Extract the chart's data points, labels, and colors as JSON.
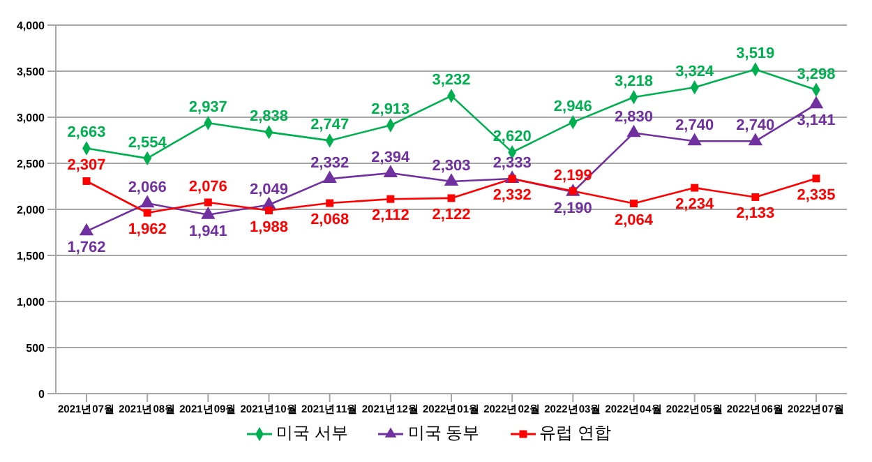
{
  "chart_data": {
    "type": "line",
    "categories": [
      "2021년07월",
      "2021년08월",
      "2021년09월",
      "2021년10월",
      "2021년11월",
      "2021년12월",
      "2022년01월",
      "2022년02월",
      "2022년03월",
      "2022년04월",
      "2022년05월",
      "2022년06월",
      "2022년07월"
    ],
    "series": [
      {
        "name": "미국 서부",
        "color": "#00b050",
        "marker": "diamond",
        "values": [
          2663,
          2554,
          2937,
          2838,
          2747,
          2913,
          3232,
          2620,
          2946,
          3218,
          3324,
          3519,
          3298
        ],
        "value_labels": [
          "2,663",
          "2,554",
          "2,937",
          "2,838",
          "2,747",
          "2,913",
          "3,232",
          "2,620",
          "2,946",
          "3,218",
          "3,324",
          "3,519",
          "3,298"
        ]
      },
      {
        "name": "미국 동부",
        "color": "#7030a0",
        "marker": "triangle",
        "values": [
          1762,
          2066,
          1941,
          2049,
          2332,
          2394,
          2303,
          2333,
          2190,
          2830,
          2740,
          2740,
          3141
        ],
        "value_labels": [
          "1,762",
          "2,066",
          "1,941",
          "2,049",
          "2,332",
          "2,394",
          "2,303",
          "2,333",
          "2,190",
          "2,830",
          "2,740",
          "2,740",
          "3,141"
        ]
      },
      {
        "name": "유럽 연합",
        "color": "#ff0000",
        "marker": "square",
        "values": [
          2307,
          1962,
          2076,
          1988,
          2068,
          2112,
          2122,
          2332,
          2199,
          2064,
          2234,
          2133,
          2335
        ],
        "value_labels": [
          "2,307",
          "1,962",
          "2,076",
          "1,988",
          "2,068",
          "2,112",
          "2,122",
          "2,332",
          "2,199",
          "2,064",
          "2,234",
          "2,133",
          "2,335"
        ]
      }
    ],
    "ylim": [
      0,
      4000
    ],
    "yticks": [
      0,
      {
        "value": 500,
        "label": "500"
      },
      {
        "value": 1000,
        "label": "1,000"
      },
      {
        "value": 1500,
        "label": "1,500"
      },
      {
        "value": 2000,
        "label": "2,000"
      },
      {
        "value": 2500,
        "label": "2,500"
      },
      {
        "value": 3000,
        "label": "3,000"
      },
      {
        "value": 3500,
        "label": "3,500"
      },
      {
        "value": 4000,
        "label": "4,000"
      }
    ],
    "grid": "y",
    "legend": "bottom"
  }
}
